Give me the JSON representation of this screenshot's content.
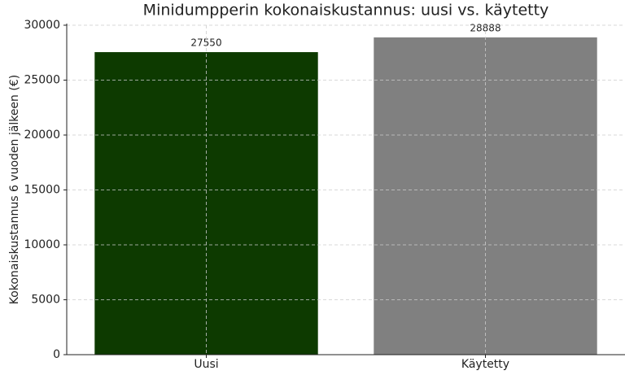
{
  "chart_data": {
    "type": "bar",
    "title": "Minidumpperin kokonaiskustannus: uusi vs. käytetty",
    "ylabel": "Kokonaiskustannus 6 vuoden jälkeen (€)",
    "categories": [
      "Uusi",
      "Käytetty"
    ],
    "values": [
      27550,
      28888
    ],
    "colors": [
      "#0d3a00",
      "#808080"
    ],
    "ylim": [
      0,
      30000
    ],
    "yticks": [
      0,
      5000,
      10000,
      15000,
      20000,
      25000,
      30000
    ],
    "grid": true
  }
}
